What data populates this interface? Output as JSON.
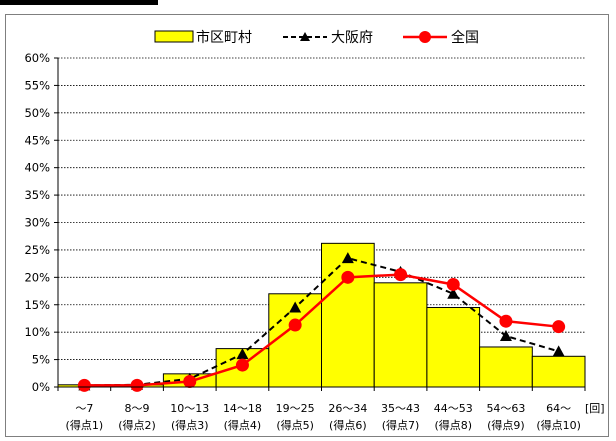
{
  "chart_data": {
    "type": "bar",
    "categories": [
      "〜7",
      "8〜9",
      "10〜13",
      "14〜18",
      "19〜25",
      "26〜34",
      "35〜43",
      "44〜53",
      "54〜63",
      "64〜"
    ],
    "category_sublabels": [
      "(得点1)",
      "(得点2)",
      "(得点3)",
      "(得点4)",
      "(得点5)",
      "(得点6)",
      "(得点7)",
      "(得点8)",
      "(得点9)",
      "(得点10)"
    ],
    "x_unit": "[回]",
    "series": [
      {
        "name": "市区町村",
        "kind": "bar",
        "color": "#ffff00",
        "values": [
          0.4,
          0.4,
          2.4,
          7.0,
          17.0,
          26.2,
          19.0,
          14.5,
          7.3,
          5.6
        ]
      },
      {
        "name": "大阪府",
        "kind": "line-dashed-triangle",
        "color": "#000000",
        "values": [
          0.3,
          0.4,
          1.5,
          6.0,
          14.5,
          23.5,
          21.0,
          17.0,
          9.3,
          6.5
        ]
      },
      {
        "name": "全国",
        "kind": "line-circle",
        "color": "#ff0000",
        "values": [
          0.3,
          0.3,
          1.0,
          4.0,
          11.3,
          20.0,
          20.5,
          18.7,
          12.0,
          11.0
        ]
      }
    ],
    "ylim": [
      0,
      60
    ],
    "yticks": [
      "0%",
      "5%",
      "10%",
      "15%",
      "20%",
      "25%",
      "30%",
      "35%",
      "40%",
      "45%",
      "50%",
      "55%",
      "60%"
    ],
    "grid": true,
    "legend_position": "top-center"
  }
}
